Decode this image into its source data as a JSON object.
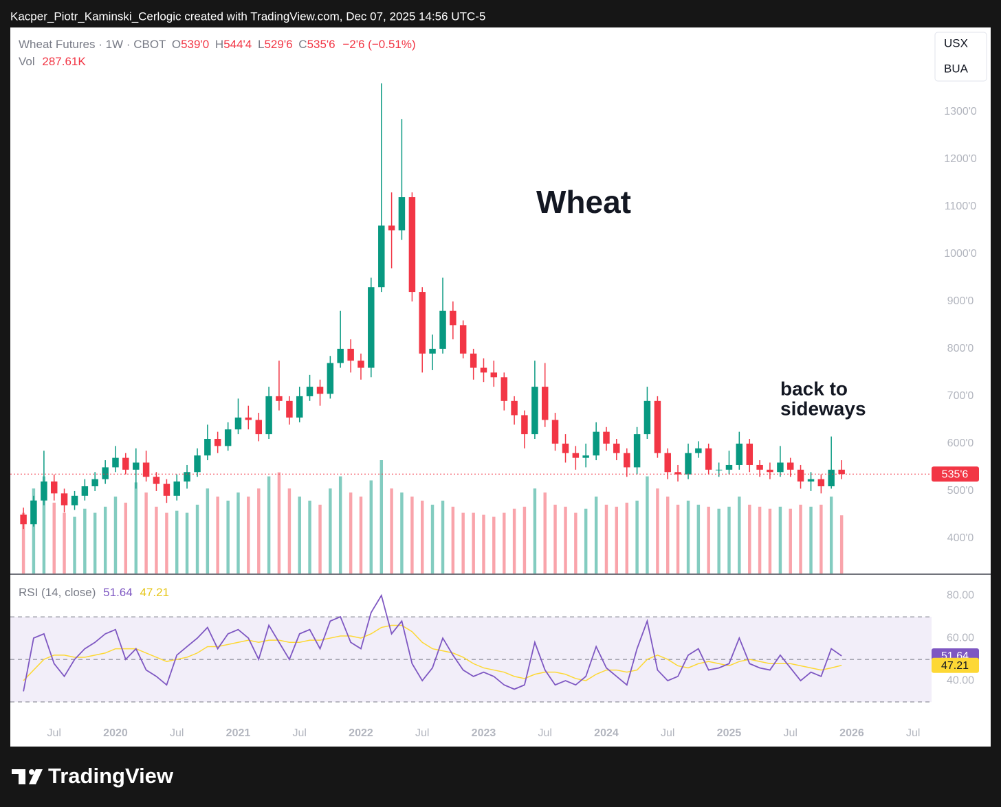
{
  "header": "Kacper_Piotr_Kaminski_Cerlogic created with TradingView.com, Dec 07, 2025 14:56 UTC-5",
  "footer_logo": "TradingView",
  "buttons": [
    "USX",
    "BUA"
  ],
  "chart_data": [
    {
      "type": "candlestick",
      "title": "Wheat",
      "annotation": [
        "back to",
        "sideways"
      ],
      "legend": {
        "symbol": "Wheat Futures · 1W · CBOT",
        "open_label": "O",
        "open": "539'0",
        "high_label": "H",
        "high": "544'4",
        "low_label": "L",
        "low": "529'6",
        "close_label": "C",
        "close": "535'6",
        "change": "−2'6 (−0.51%)"
      },
      "x": [
        2019.25,
        2019.333,
        2019.417,
        2019.5,
        2019.583,
        2019.667,
        2019.75,
        2019.833,
        2019.917,
        2020.0,
        2020.083,
        2020.167,
        2020.25,
        2020.333,
        2020.417,
        2020.5,
        2020.583,
        2020.667,
        2020.75,
        2020.833,
        2020.917,
        2021.0,
        2021.083,
        2021.167,
        2021.25,
        2021.333,
        2021.417,
        2021.5,
        2021.583,
        2021.667,
        2021.75,
        2021.833,
        2021.917,
        2022.0,
        2022.083,
        2022.167,
        2022.25,
        2022.333,
        2022.417,
        2022.5,
        2022.583,
        2022.667,
        2022.75,
        2022.833,
        2022.917,
        2023.0,
        2023.083,
        2023.167,
        2023.25,
        2023.333,
        2023.417,
        2023.5,
        2023.583,
        2023.667,
        2023.75,
        2023.833,
        2023.917,
        2024.0,
        2024.083,
        2024.167,
        2024.25,
        2024.333,
        2024.417,
        2024.5,
        2024.583,
        2024.667,
        2024.75,
        2024.833,
        2024.917,
        2025.0,
        2025.083,
        2025.167,
        2025.25,
        2025.333,
        2025.417,
        2025.5,
        2025.583,
        2025.667,
        2025.75,
        2025.833,
        2025.917
      ],
      "series": [
        {
          "up_color": "#089981",
          "down_color": "#f23645",
          "open": [
            450,
            430,
            480,
            520,
            495,
            470,
            490,
            510,
            525,
            550,
            570,
            545,
            560,
            530,
            515,
            490,
            520,
            540,
            575,
            610,
            595,
            630,
            655,
            650,
            620,
            700,
            690,
            655,
            700,
            720,
            705,
            770,
            800,
            775,
            760,
            930,
            1060,
            1050,
            1120,
            920,
            790,
            800,
            880,
            850,
            790,
            760,
            750,
            740,
            690,
            660,
            620,
            720,
            650,
            600,
            580,
            570,
            575,
            625,
            600,
            580,
            550,
            620,
            690,
            580,
            540,
            535,
            580,
            590,
            545,
            545,
            555,
            600,
            555,
            545,
            540,
            560,
            545,
            520,
            525,
            510,
            545
          ],
          "high": [
            465,
            490,
            585,
            535,
            505,
            500,
            525,
            540,
            565,
            595,
            580,
            590,
            585,
            540,
            525,
            535,
            555,
            590,
            640,
            625,
            645,
            695,
            680,
            665,
            720,
            775,
            700,
            720,
            745,
            735,
            785,
            880,
            820,
            790,
            950,
            1360,
            1130,
            1285,
            1130,
            930,
            830,
            950,
            900,
            860,
            800,
            780,
            775,
            750,
            700,
            670,
            775,
            770,
            665,
            620,
            595,
            600,
            645,
            635,
            610,
            590,
            635,
            720,
            700,
            590,
            555,
            600,
            605,
            600,
            560,
            585,
            625,
            610,
            565,
            560,
            595,
            570,
            555,
            540,
            535,
            615,
            565
          ],
          "low": [
            420,
            425,
            470,
            480,
            455,
            460,
            480,
            500,
            515,
            540,
            535,
            505,
            520,
            500,
            475,
            480,
            505,
            530,
            565,
            580,
            585,
            620,
            630,
            605,
            610,
            670,
            640,
            645,
            690,
            680,
            695,
            760,
            750,
            735,
            740,
            920,
            970,
            1030,
            900,
            750,
            755,
            790,
            820,
            780,
            735,
            730,
            720,
            670,
            640,
            590,
            610,
            635,
            585,
            560,
            545,
            550,
            565,
            585,
            565,
            530,
            535,
            610,
            570,
            525,
            520,
            525,
            570,
            535,
            530,
            535,
            545,
            540,
            530,
            525,
            530,
            530,
            505,
            500,
            495,
            505,
            525
          ],
          "close": [
            430,
            480,
            520,
            495,
            470,
            490,
            510,
            525,
            550,
            570,
            545,
            560,
            530,
            515,
            490,
            520,
            540,
            575,
            610,
            595,
            630,
            655,
            650,
            620,
            700,
            690,
            655,
            700,
            720,
            705,
            770,
            800,
            775,
            760,
            930,
            1060,
            1050,
            1120,
            920,
            790,
            800,
            880,
            850,
            790,
            760,
            750,
            740,
            690,
            660,
            620,
            720,
            650,
            600,
            580,
            570,
            575,
            625,
            600,
            580,
            550,
            620,
            690,
            580,
            540,
            535,
            580,
            590,
            545,
            545,
            555,
            600,
            555,
            545,
            540,
            560,
            545,
            520,
            525,
            510,
            545,
            535.75
          ]
        }
      ],
      "volume": {
        "name": "Vol",
        "last_value_label": "287.61K",
        "up_color": "rgba(8,153,129,0.5)",
        "down_color": "rgba(242,54,69,0.45)",
        "values": [
          300,
          420,
          480,
          350,
          300,
          280,
          320,
          300,
          330,
          380,
          350,
          450,
          400,
          330,
          300,
          310,
          300,
          340,
          420,
          380,
          360,
          400,
          380,
          420,
          480,
          500,
          420,
          380,
          360,
          340,
          420,
          480,
          400,
          380,
          460,
          560,
          420,
          400,
          380,
          360,
          340,
          360,
          330,
          300,
          300,
          290,
          280,
          300,
          320,
          330,
          420,
          400,
          340,
          330,
          300,
          320,
          380,
          340,
          330,
          350,
          360,
          480,
          420,
          380,
          340,
          360,
          340,
          330,
          320,
          330,
          380,
          340,
          330,
          320,
          330,
          320,
          340,
          330,
          340,
          380,
          287.61
        ]
      },
      "last_price": {
        "value": 535.75,
        "label": "535'6",
        "color": "#f23645"
      },
      "xlim": [
        2019.143,
        2026.65
      ],
      "xticks": [
        {
          "value": 2019.5,
          "label": "Jul"
        },
        2020,
        {
          "value": 2020.5,
          "label": "Jul"
        },
        2021,
        {
          "value": 2021.5,
          "label": "Jul"
        },
        2022,
        {
          "value": 2022.5,
          "label": "Jul"
        },
        2023,
        {
          "value": 2023.5,
          "label": "Jul"
        },
        2024,
        {
          "value": 2024.5,
          "label": "Jul"
        },
        2025,
        {
          "value": 2025.5,
          "label": "Jul"
        },
        2026,
        {
          "value": 2026.5,
          "label": "Jul"
        }
      ],
      "ylim": [
        326,
        1478
      ],
      "yticks": [
        {
          "value": 400,
          "label": "400'0"
        },
        {
          "value": 500,
          "label": "500'0"
        },
        {
          "value": 600,
          "label": "600'0"
        },
        {
          "value": 700,
          "label": "700'0"
        },
        {
          "value": 800,
          "label": "800'0"
        },
        {
          "value": 900,
          "label": "900'0"
        },
        {
          "value": 1000,
          "label": "1000'0"
        },
        {
          "value": 1100,
          "label": "1100'0"
        },
        {
          "value": 1200,
          "label": "1200'0"
        },
        {
          "value": 1300,
          "label": "1300'0"
        }
      ],
      "grid": false
    },
    {
      "type": "line",
      "title": "RSI (14, close)",
      "ylim": [
        22.6,
        89.7
      ],
      "yticks": [
        {
          "value": 40,
          "label": "40.00"
        },
        {
          "value": 60,
          "label": "60.00"
        },
        {
          "value": 80,
          "label": "80.00"
        }
      ],
      "levels": [
        30,
        50,
        70
      ],
      "band_color": "rgba(126,87,194,0.1)",
      "series": [
        {
          "color": "#7e57c2",
          "text_color": "#ffffff",
          "values": [
            35,
            60,
            62,
            48,
            42,
            50,
            55,
            58,
            62,
            64,
            50,
            55,
            45,
            42,
            38,
            52,
            56,
            60,
            65,
            55,
            62,
            64,
            60,
            50,
            66,
            58,
            50,
            62,
            64,
            55,
            68,
            70,
            58,
            55,
            72,
            80,
            62,
            68,
            48,
            40,
            46,
            60,
            52,
            45,
            42,
            44,
            42,
            38,
            36,
            38,
            58,
            45,
            38,
            40,
            38,
            42,
            56,
            46,
            42,
            38,
            55,
            68,
            45,
            40,
            42,
            52,
            55,
            45,
            46,
            48,
            60,
            48,
            46,
            45,
            52,
            46,
            40,
            44,
            42,
            55,
            51.64
          ]
        },
        {
          "color": "#fdd835",
          "text_color": "#131722",
          "values": [
            40,
            45,
            50,
            52,
            52,
            51,
            51,
            52,
            53,
            55,
            55,
            55,
            53,
            51,
            49,
            50,
            51,
            53,
            56,
            56,
            57,
            58,
            59,
            58,
            59,
            59,
            58,
            58,
            59,
            59,
            60,
            61,
            61,
            60,
            62,
            65,
            66,
            66,
            63,
            58,
            55,
            54,
            53,
            51,
            48,
            46,
            45,
            44,
            42,
            41,
            43,
            44,
            44,
            43,
            41,
            40,
            43,
            45,
            45,
            44,
            45,
            50,
            52,
            50,
            47,
            46,
            48,
            49,
            48,
            47,
            49,
            50,
            49,
            48,
            48,
            48,
            47,
            46,
            45,
            46,
            47.21
          ]
        }
      ]
    }
  ]
}
